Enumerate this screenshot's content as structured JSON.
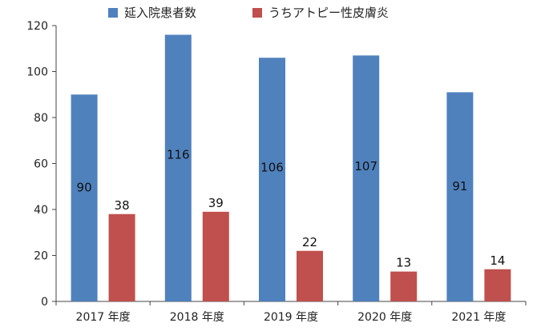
{
  "chart_data": {
    "type": "bar",
    "title": "",
    "xlabel": "",
    "ylabel": "",
    "categories": [
      "2017 年度",
      "2018 年度",
      "2019 年度",
      "2020 年度",
      "2021 年度"
    ],
    "series": [
      {
        "name": "延入院患者数",
        "values": [
          90,
          116,
          106,
          107,
          91
        ],
        "color": "#4f81bd"
      },
      {
        "name": "うちアトピー性皮膚炎",
        "values": [
          38,
          39,
          22,
          13,
          14
        ],
        "color": "#c0504d"
      }
    ],
    "ylim": [
      0,
      120
    ],
    "yticks": [
      0,
      20,
      40,
      60,
      80,
      100,
      120
    ],
    "grid": false,
    "legend_position": "top"
  }
}
